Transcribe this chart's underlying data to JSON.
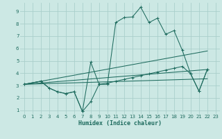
{
  "title": "",
  "xlabel": "Humidex (Indice chaleur)",
  "bg_color": "#cce8e4",
  "grid_color": "#aacfcb",
  "line_color": "#1e6b5e",
  "xlim": [
    -0.5,
    23.5
  ],
  "ylim": [
    0.7,
    9.7
  ],
  "xticks": [
    0,
    1,
    2,
    3,
    4,
    5,
    6,
    7,
    8,
    9,
    10,
    11,
    12,
    13,
    14,
    15,
    16,
    17,
    18,
    19,
    20,
    21,
    22,
    23
  ],
  "yticks": [
    1,
    2,
    3,
    4,
    5,
    6,
    7,
    8,
    9
  ],
  "series": [
    {
      "x": [
        0,
        2,
        3,
        4,
        5,
        6,
        7,
        8,
        9,
        10,
        11,
        12,
        13,
        14,
        15,
        16,
        17,
        18,
        19,
        20,
        21,
        22
      ],
      "y": [
        3.1,
        3.35,
        2.8,
        2.5,
        2.35,
        2.5,
        0.9,
        4.9,
        3.1,
        3.1,
        8.1,
        8.5,
        8.55,
        9.35,
        8.1,
        8.45,
        7.15,
        7.45,
        5.85,
        3.95,
        2.55,
        4.3
      ],
      "marker": true
    },
    {
      "x": [
        0,
        2,
        3,
        4,
        5,
        6,
        7,
        8,
        9,
        10,
        11,
        12,
        13,
        14,
        15,
        16,
        17,
        18,
        19,
        20,
        21,
        22
      ],
      "y": [
        3.1,
        3.35,
        2.8,
        2.5,
        2.35,
        2.5,
        0.9,
        1.7,
        3.1,
        3.2,
        3.35,
        3.5,
        3.65,
        3.8,
        3.95,
        4.1,
        4.25,
        4.4,
        4.55,
        3.95,
        2.55,
        4.3
      ],
      "marker": true
    },
    {
      "x": [
        0,
        22
      ],
      "y": [
        3.1,
        5.8
      ],
      "marker": false
    },
    {
      "x": [
        0,
        22
      ],
      "y": [
        3.1,
        4.3
      ],
      "marker": false
    },
    {
      "x": [
        0,
        22
      ],
      "y": [
        3.1,
        3.55
      ],
      "marker": false
    }
  ]
}
